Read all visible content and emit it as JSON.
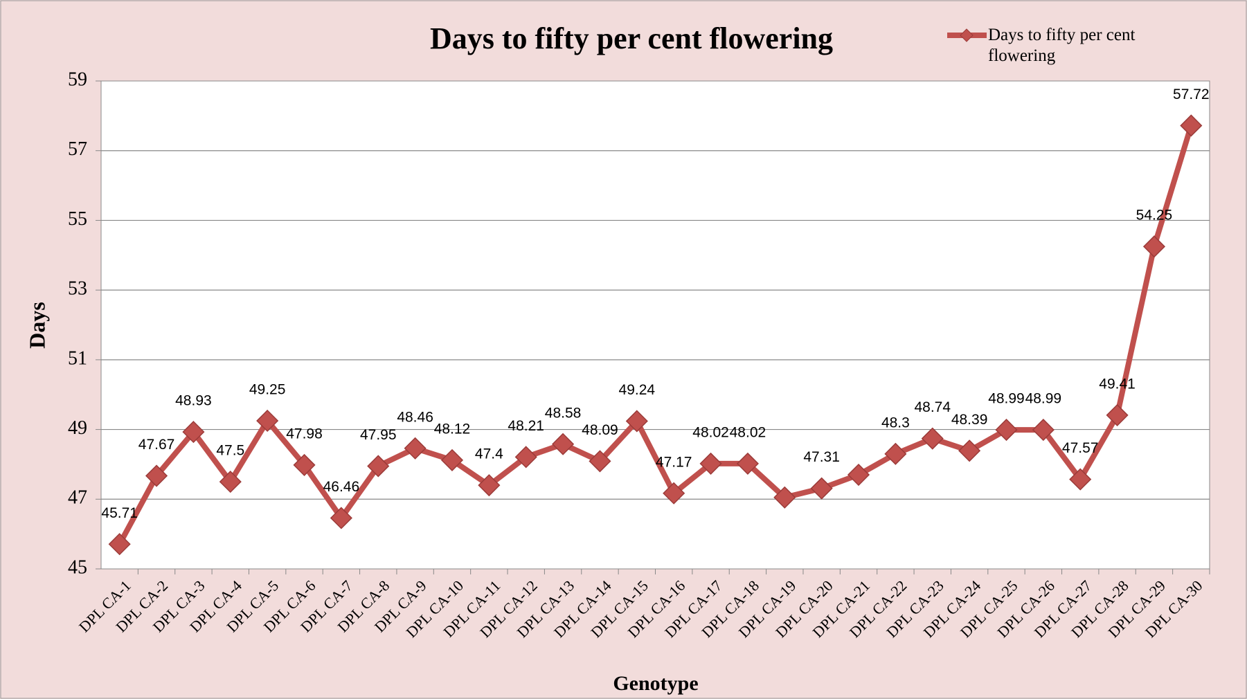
{
  "chart_data": {
    "type": "line",
    "title": "Days to fifty per cent flowering",
    "x_label": "Genotype",
    "y_label": "Days",
    "categories": [
      "DPL CA-1",
      "DPL CA-2",
      "DPL CA-3",
      "DPL CA-4",
      "DPL CA-5",
      "DPL CA-6",
      "DPL CA-7",
      "DPL CA-8",
      "DPL CA-9",
      "DPL CA-10",
      "DPL CA-11",
      "DPL CA-12",
      "DPL CA-13",
      "DPL CA-14",
      "DPL CA-15",
      "DPL CA-16",
      "DPL CA-17",
      "DPL CA-18",
      "DPL CA-19",
      "DPL CA-20",
      "DPL CA-21",
      "DPL CA-22",
      "DPL CA-23",
      "DPL CA-24",
      "DPL CA-25",
      "DPL CA-26",
      "DPL CA-27",
      "DPL CA-28",
      "DPL CA-29",
      "DPL CA-30"
    ],
    "series": [
      {
        "name": "Days to fifty per cent flowering",
        "color": "#c0504d",
        "values": [
          45.71,
          47.67,
          48.93,
          47.5,
          49.25,
          47.98,
          46.46,
          47.95,
          48.46,
          48.12,
          47.4,
          48.21,
          48.58,
          48.09,
          49.24,
          47.17,
          48.02,
          48.02,
          47.05,
          47.31,
          47.7,
          48.3,
          48.74,
          48.39,
          48.99,
          48.99,
          47.57,
          49.41,
          54.25,
          57.72
        ],
        "value_labels": [
          "45.71",
          "47.67",
          "48.93",
          "47.5",
          "49.25",
          "47.98",
          "46.46",
          "47.95",
          "48.46",
          "48.12",
          "47.4",
          "48.21",
          "48.58",
          "48.09",
          "49.24",
          "47.17",
          "48.02",
          "48.02",
          null,
          "47.31",
          null,
          "48.3",
          "48.74",
          "48.39",
          "48.99",
          "48.99",
          "47.57",
          "49.41",
          "54.25",
          "57.72"
        ]
      }
    ],
    "ylim": [
      45,
      59
    ],
    "yticks": [
      45,
      47,
      49,
      51,
      53,
      55,
      57,
      59
    ],
    "grid": true,
    "legend": "top-right"
  }
}
